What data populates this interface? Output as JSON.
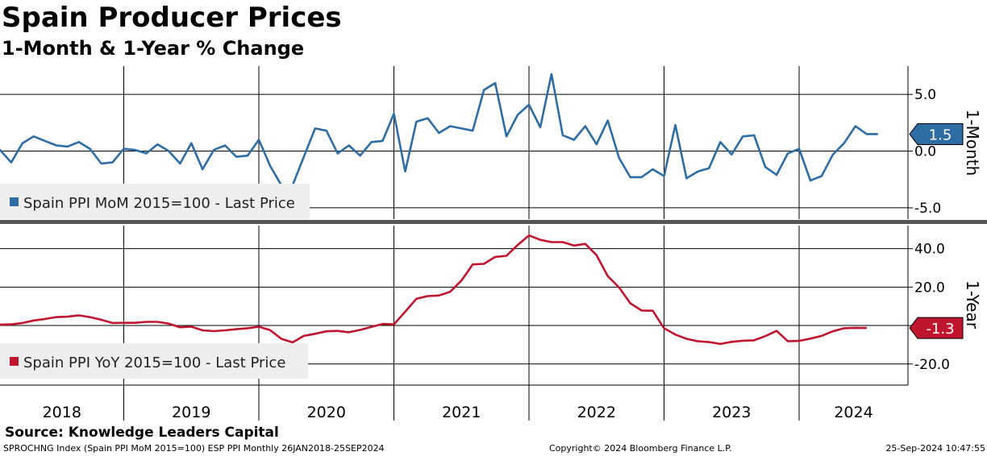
{
  "header": {
    "title": "Spain Producer Prices",
    "subtitle": "1-Month & 1-Year % Change"
  },
  "footer": {
    "source": "Source: Knowledge Leaders Capital",
    "ticker": "SPROCHNG Index (Spain PPI MoM 2015=100) ESP PPI  Monthly 26JAN2018-25SEP2024",
    "copyright": "Copyright© 2024 Bloomberg Finance L.P.",
    "timestamp": "25-Sep-2024 10:47:55"
  },
  "colors": {
    "mom": "#2e6da4",
    "yoy": "#c0152f",
    "grid": "#000000",
    "legend_bg": "#eeeeee"
  },
  "chart_data": [
    {
      "type": "line",
      "panel": "top",
      "axis_title": "1-Month",
      "series_name": "Spain PPI MoM 2015=100 - Last Price",
      "ylim": [
        -6.0,
        7.5
      ],
      "yticks": [
        5.0,
        0.0,
        -5.0
      ],
      "ytick_labels": [
        "5.0",
        "0.0",
        "-5.0"
      ],
      "last_value": 1.5,
      "last_label": "1.5",
      "x_start": 2018.0,
      "x_step_months": 1,
      "values": [
        0.2,
        0.1,
        -1.0,
        0.7,
        1.3,
        0.9,
        0.5,
        0.4,
        0.8,
        0.2,
        -1.1,
        -1.0,
        0.2,
        0.1,
        -0.2,
        0.6,
        0.0,
        -1.1,
        0.7,
        -1.6,
        0.1,
        0.5,
        -0.5,
        -0.4,
        1.0,
        -1.3,
        -3.0,
        -3.0,
        -0.5,
        2.0,
        1.8,
        -0.2,
        0.5,
        -0.4,
        0.8,
        0.9,
        3.3,
        -1.8,
        2.6,
        2.9,
        1.6,
        2.2,
        2.0,
        1.8,
        5.4,
        6.0,
        1.3,
        3.2,
        4.1,
        2.1,
        6.8,
        1.4,
        1.0,
        2.2,
        0.6,
        2.7,
        -0.6,
        -2.3,
        -2.3,
        -1.6,
        -2.2,
        2.3,
        -2.4,
        -1.8,
        -1.5,
        0.8,
        -0.3,
        1.3,
        1.4,
        -1.4,
        -2.1,
        -0.2,
        0.2,
        -2.6,
        -2.2,
        -0.3,
        0.7,
        2.2,
        1.5,
        1.5
      ],
      "legend_position": "bottom-left"
    },
    {
      "type": "line",
      "panel": "bottom",
      "axis_title": "1-Year",
      "series_name": "Spain PPI YoY 2015=100 - Last Price",
      "ylim": [
        -31,
        52
      ],
      "yticks": [
        40.0,
        20.0,
        0.0,
        -20.0
      ],
      "ytick_labels": [
        "40.0",
        "20.0",
        "",
        "-20.0"
      ],
      "last_value": -1.3,
      "last_label": "-1.3",
      "x_start": 2018.0,
      "x_step_months": 1,
      "values": [
        0.3,
        0.5,
        0.6,
        1.3,
        2.6,
        3.4,
        4.4,
        4.6,
        5.3,
        4.4,
        3.0,
        1.3,
        1.4,
        1.4,
        1.9,
        1.9,
        1.0,
        -0.9,
        -0.6,
        -2.5,
        -2.9,
        -2.5,
        -1.9,
        -1.4,
        -0.6,
        -2.4,
        -6.9,
        -8.8,
        -5.4,
        -4.3,
        -3.0,
        -2.8,
        -3.5,
        -2.3,
        -0.7,
        0.8,
        0.6,
        7.2,
        13.9,
        15.3,
        15.6,
        17.6,
        23.4,
        31.8,
        32.1,
        35.7,
        36.3,
        41.9,
        46.9,
        44.6,
        43.4,
        43.4,
        41.6,
        42.5,
        36.6,
        25.7,
        19.8,
        11.6,
        7.8,
        7.7,
        -1.4,
        -4.7,
        -6.9,
        -8.2,
        -8.6,
        -9.6,
        -8.5,
        -7.9,
        -7.7,
        -5.5,
        -2.8,
        -8.2,
        -8.0,
        -6.8,
        -5.4,
        -3.0,
        -1.4,
        -1.2,
        -1.3
      ],
      "legend_position": "bottom-left"
    }
  ],
  "x_axis": {
    "labels": [
      "2018",
      "2019",
      "2020",
      "2021",
      "2022",
      "2023",
      "2024"
    ]
  }
}
